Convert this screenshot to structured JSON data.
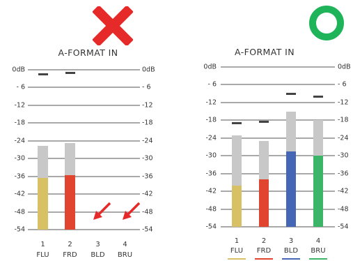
{
  "left_panel": {
    "title": "A-FORMAT IN",
    "status": "incorrect",
    "scale": [
      "0dB",
      "- 6",
      "-12",
      "-18",
      "-24",
      "-30",
      "-36",
      "-42",
      "-48",
      "-54"
    ],
    "channels": [
      {
        "number": "1",
        "name": "FLU",
        "color": "#d8c064",
        "level_db": -36.5,
        "rms_top_db": -25.8,
        "peak_db": -1.5
      },
      {
        "number": "2",
        "name": "FRD",
        "color": "#e2452f",
        "level_db": -35.5,
        "rms_top_db": -24.8,
        "peak_db": -1.0
      },
      {
        "number": "3",
        "name": "BLD",
        "color": "#4466b4",
        "level_db": null,
        "rms_top_db": null,
        "peak_db": null
      },
      {
        "number": "4",
        "name": "BRU",
        "color": "#3db568",
        "level_db": null,
        "rms_top_db": null,
        "peak_db": null
      }
    ],
    "arrow_color": "#e62a2a",
    "mark_color": "#e62a2a"
  },
  "right_panel": {
    "title": "A-FORMAT IN",
    "status": "correct",
    "scale": [
      "0dB",
      "- 6",
      "-12",
      "-18",
      "-24",
      "-30",
      "-36",
      "-42",
      "-48",
      "-54"
    ],
    "channels": [
      {
        "number": "1",
        "name": "FLU",
        "color": "#d8c064",
        "level_db": -40.0,
        "rms_top_db": -23.0,
        "peak_db": -18.8
      },
      {
        "number": "2",
        "name": "FRD",
        "color": "#e2452f",
        "level_db": -38.0,
        "rms_top_db": -25.0,
        "peak_db": -18.5
      },
      {
        "number": "3",
        "name": "BLD",
        "color": "#4466b4",
        "level_db": -28.5,
        "rms_top_db": -15.0,
        "peak_db": -9.0
      },
      {
        "number": "4",
        "name": "BRU",
        "color": "#3db568",
        "level_db": -30.0,
        "rms_top_db": -18.0,
        "peak_db": -10.0
      }
    ],
    "mark_color": "#1fb35a"
  }
}
